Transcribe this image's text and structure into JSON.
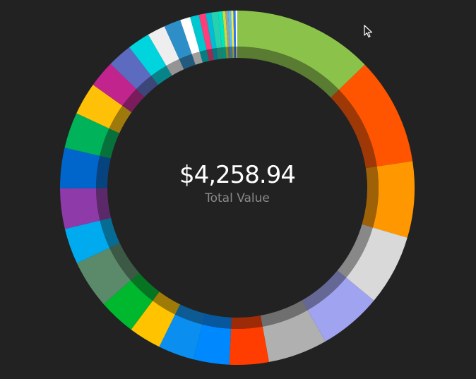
{
  "center": {
    "value": "$4,258.94",
    "label": "Total Value"
  },
  "chart_data": {
    "type": "pie",
    "subtype": "donut",
    "total": 4258.94,
    "segments": [
      {
        "value": 12.5,
        "color": "#8bc34a"
      },
      {
        "value": 9.6,
        "color": "#ff5500"
      },
      {
        "value": 6.8,
        "color": "#ff9800"
      },
      {
        "value": 6.3,
        "color": "#d9d9d9"
      },
      {
        "value": 5.6,
        "color": "#9fa3f0"
      },
      {
        "value": 5.3,
        "color": "#b0b0b0"
      },
      {
        "value": 3.5,
        "color": "#ff3d00"
      },
      {
        "value": 3.2,
        "color": "#0088ff"
      },
      {
        "value": 3.2,
        "color": "#0a8ff0"
      },
      {
        "value": 2.9,
        "color": "#ffc300"
      },
      {
        "value": 3.3,
        "color": "#00b82e"
      },
      {
        "value": 4.3,
        "color": "#5a8a6a"
      },
      {
        "value": 3.2,
        "color": "#00aaee"
      },
      {
        "value": 3.6,
        "color": "#8e3aa8"
      },
      {
        "value": 3.6,
        "color": "#0066cc"
      },
      {
        "value": 3.2,
        "color": "#00b35a"
      },
      {
        "value": 2.9,
        "color": "#ffc107"
      },
      {
        "value": 2.4,
        "color": "#c2248e"
      },
      {
        "value": 2.2,
        "color": "#5c6bc0"
      },
      {
        "value": 2.0,
        "color": "#00d4dc"
      },
      {
        "value": 1.6,
        "color": "#eeeeee"
      },
      {
        "value": 1.5,
        "color": "#2e8fc8"
      },
      {
        "value": 0.9,
        "color": "#ffffff"
      },
      {
        "value": 0.8,
        "color": "#00c8d0"
      },
      {
        "value": 0.6,
        "color": "#ff3d7a"
      },
      {
        "value": 0.5,
        "color": "#00bcd4"
      },
      {
        "value": 0.6,
        "color": "#26d0b0"
      },
      {
        "value": 0.4,
        "color": "#00e5c0"
      },
      {
        "value": 0.25,
        "color": "#cddc39"
      },
      {
        "value": 0.25,
        "color": "#9e9e9e"
      },
      {
        "value": 0.25,
        "color": "#4fc3f7"
      },
      {
        "value": 0.2,
        "color": "#ffeb3b"
      },
      {
        "value": 0.2,
        "color": "#2979ff"
      },
      {
        "value": 0.15,
        "color": "#ffffff"
      }
    ]
  }
}
